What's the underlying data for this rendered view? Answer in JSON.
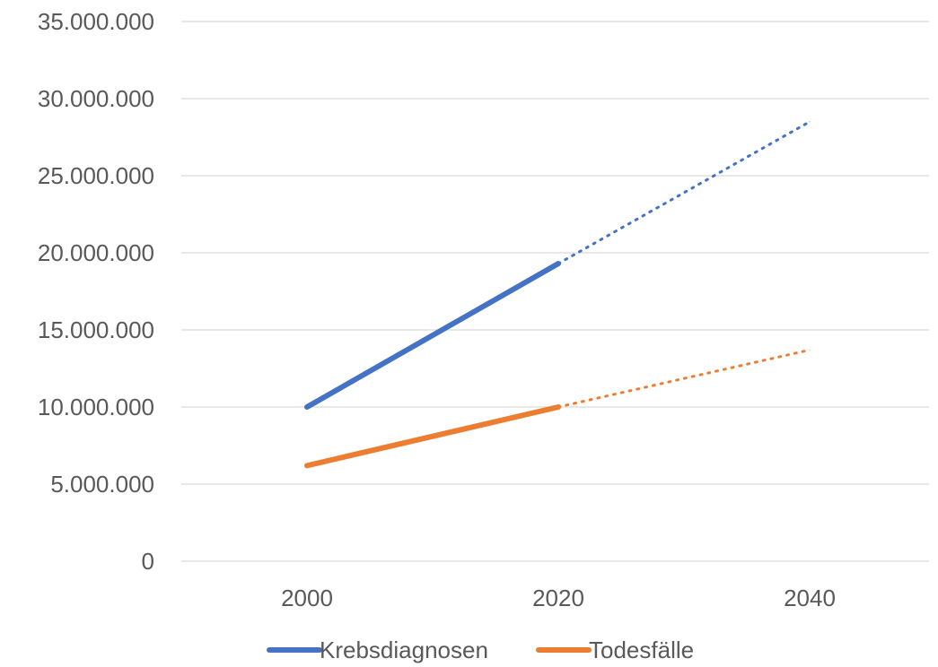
{
  "chart_data": {
    "type": "line",
    "categories": [
      "2000",
      "2020",
      "2040"
    ],
    "series": [
      {
        "name": "Krebsdiagnosen",
        "values": [
          10000000,
          19300000,
          28500000
        ],
        "color": "#4472C4",
        "segments": [
          {
            "from": 0,
            "to": 1,
            "style": "solid"
          },
          {
            "from": 1,
            "to": 2,
            "style": "dotted"
          }
        ]
      },
      {
        "name": "Todesfälle",
        "values": [
          6200000,
          10000000,
          13700000
        ],
        "color": "#ED7D31",
        "segments": [
          {
            "from": 0,
            "to": 1,
            "style": "solid"
          },
          {
            "from": 1,
            "to": 2,
            "style": "dotted"
          }
        ]
      }
    ],
    "yticks": [
      0,
      5000000,
      10000000,
      15000000,
      20000000,
      25000000,
      30000000,
      35000000
    ],
    "ytick_labels": [
      "0",
      "5.000.000",
      "10.000.000",
      "15.000.000",
      "20.000.000",
      "25.000.000",
      "30.000.000",
      "35.000.000"
    ],
    "ylim": [
      0,
      35000000
    ],
    "grid": true,
    "gridline_color": "#D9D9D9",
    "legend_position": "bottom"
  }
}
